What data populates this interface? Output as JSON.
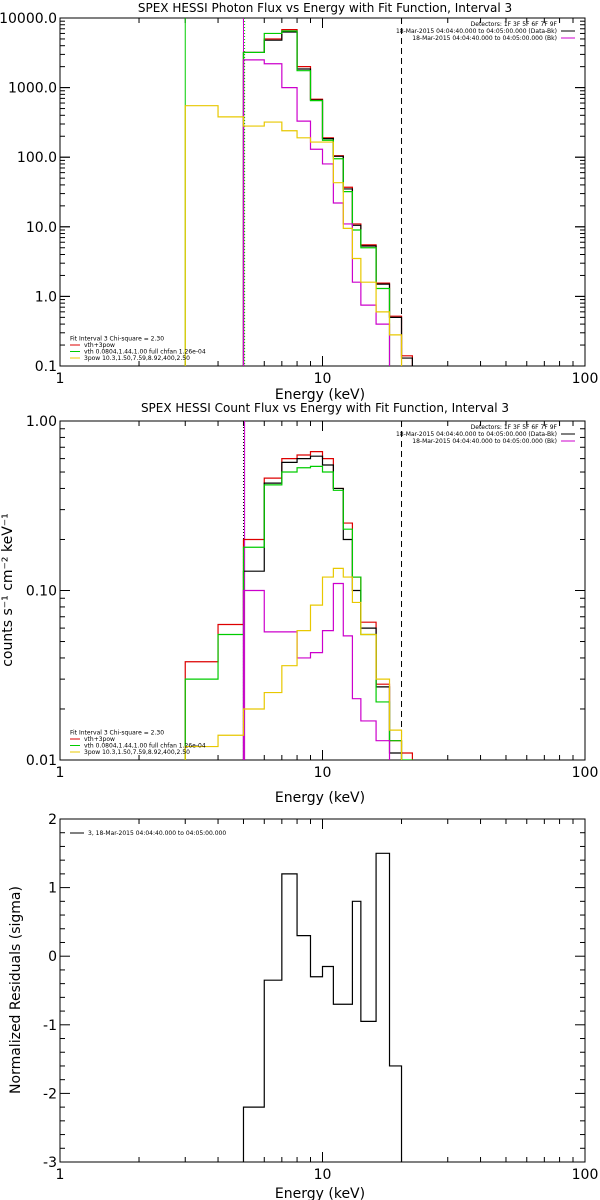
{
  "chart_data": [
    {
      "type": "line",
      "title": "SPEX HESSI Photon Flux vs Energy with Fit Function, Interval 3",
      "xlabel": "Energy (keV)",
      "ylabel": "",
      "x_scale": "log",
      "y_scale": "log",
      "xlim": [
        1,
        100
      ],
      "ylim": [
        0.1,
        10000
      ],
      "x_ticks": [
        "1",
        "10",
        "100"
      ],
      "y_ticks": [
        "0.1",
        "1.0",
        "10.0",
        "100.0",
        "1000.0",
        "10000.0"
      ],
      "legend_top": {
        "placement": "top-right",
        "entries": [
          {
            "text": "Detectors: 1F 3F 5F 6F 7F 9F",
            "color": ""
          },
          {
            "text": "18-Mar-2015 04:04:40.000 to 04:05:00.000 (Data-Bk)",
            "color": "#000000"
          },
          {
            "text": "18-Mar-2015 04:04:40.000 to 04:05:00.000 (Bk)",
            "color": "#cc00cc"
          }
        ]
      },
      "legend_bottom": {
        "placement": "bottom-left",
        "entries": [
          {
            "text": "Fit Interval 3   Chi-square = 2.30",
            "color": ""
          },
          {
            "text": "vth+3pow",
            "color": "#dd0000"
          },
          {
            "text": "vth 0.0804,1.44,1.00  full chfan 1.26e-04",
            "color": "#00cc00"
          },
          {
            "text": "3pow 10.3,1.50,7.59,8.92,400,2.50",
            "color": "#e8c800"
          }
        ]
      },
      "vlines": [
        {
          "x": 3.0,
          "color": "#00cc00",
          "style": "solid"
        },
        {
          "x": 5.0,
          "color": "#cc00cc",
          "style": "solid"
        },
        {
          "x": 5.05,
          "color": "#00cc00",
          "style": "dotted"
        },
        {
          "x": 20.0,
          "color": "#000000",
          "style": "dashed"
        }
      ],
      "series": [
        {
          "name": "vth+3pow",
          "color": "#dd0000",
          "edges": [
            5,
            6,
            7,
            8,
            9,
            10,
            11,
            12,
            13,
            14,
            16,
            18,
            20,
            22
          ],
          "values": [
            3200,
            5000,
            6800,
            2000,
            680,
            190,
            105,
            37,
            11,
            5.5,
            1.55,
            0.52,
            0.14
          ]
        },
        {
          "name": "Data-Bk",
          "color": "#000000",
          "edges": [
            5,
            6,
            7,
            8,
            9,
            10,
            11,
            12,
            13,
            14,
            16,
            18,
            20,
            22
          ],
          "values": [
            3200,
            4800,
            6300,
            1850,
            660,
            185,
            103,
            35,
            10.5,
            5.3,
            1.5,
            0.5,
            0.13
          ]
        },
        {
          "name": "vth",
          "color": "#00cc00",
          "edges": [
            5,
            6,
            7,
            8,
            9,
            10,
            11,
            12,
            13,
            14,
            16,
            18
          ],
          "values": [
            3200,
            6000,
            6500,
            1750,
            650,
            175,
            95,
            32,
            9,
            5,
            1.3
          ]
        },
        {
          "name": "Bk",
          "color": "#cc00cc",
          "edges": [
            5,
            6,
            7,
            8,
            9,
            10,
            11,
            12,
            13,
            14,
            16,
            18
          ],
          "values": [
            2500,
            2200,
            1000,
            330,
            130,
            80,
            22,
            11,
            1.6,
            0.75,
            0.4
          ]
        },
        {
          "name": "3pow",
          "color": "#e8c800",
          "edges": [
            3,
            4,
            5,
            6,
            7,
            8,
            9,
            10,
            11,
            12,
            13,
            14,
            16,
            18,
            20
          ],
          "values": [
            550,
            380,
            280,
            320,
            240,
            190,
            165,
            165,
            43,
            9.5,
            3.5,
            1.6,
            0.6,
            0.28
          ]
        }
      ]
    },
    {
      "type": "line",
      "title": "SPEX HESSI Count Flux vs Energy with Fit Function, Interval 3",
      "xlabel": "Energy (keV)",
      "ylabel": "counts s⁻¹ cm⁻² keV⁻¹",
      "x_scale": "log",
      "y_scale": "log",
      "xlim": [
        1,
        100
      ],
      "ylim": [
        0.01,
        1
      ],
      "x_ticks": [
        "1",
        "10",
        "100"
      ],
      "y_ticks": [
        "0.01",
        "0.10",
        "1.00"
      ],
      "legend_top": {
        "placement": "top-right",
        "entries": [
          {
            "text": "Detectors: 1F 3F 5F 6F 7F 9F",
            "color": ""
          },
          {
            "text": "18-Mar-2015 04:04:40.000 to 04:05:00.000 (Data-Bk)",
            "color": "#000000"
          },
          {
            "text": "18-Mar-2015 04:04:40.000 to 04:05:00.000 (Bk)",
            "color": "#cc00cc"
          }
        ]
      },
      "legend_bottom": {
        "placement": "bottom-left",
        "entries": [
          {
            "text": "Fit Interval 3   Chi-square = 2.30",
            "color": ""
          },
          {
            "text": "vth+3pow",
            "color": "#dd0000"
          },
          {
            "text": "vth 0.0804,1.44,1.00  full chfan 1.26e-04",
            "color": "#00cc00"
          },
          {
            "text": "3pow 10.3,1.50,7.59,8.92,400,2.50",
            "color": "#e8c800"
          }
        ]
      },
      "vlines": [
        {
          "x": 5.0,
          "color": "#000000",
          "style": "dotted"
        },
        {
          "x": 5.05,
          "color": "#cc00cc",
          "style": "solid"
        },
        {
          "x": 20.0,
          "color": "#000000",
          "style": "dashed"
        }
      ],
      "series": [
        {
          "name": "vth+3pow",
          "color": "#dd0000",
          "edges": [
            3,
            4,
            5,
            6,
            7,
            8,
            9,
            10,
            11,
            12,
            13,
            14,
            16,
            18,
            20,
            22
          ],
          "values": [
            0.038,
            0.063,
            0.2,
            0.46,
            0.6,
            0.63,
            0.66,
            0.6,
            0.4,
            0.25,
            0.12,
            0.065,
            0.028,
            0.013,
            0.011
          ]
        },
        {
          "name": "Data-Bk",
          "color": "#000000",
          "edges": [
            5,
            6,
            7,
            8,
            9,
            10,
            11,
            12,
            13,
            14,
            16,
            18,
            20
          ],
          "values": [
            0.13,
            0.43,
            0.57,
            0.6,
            0.62,
            0.55,
            0.4,
            0.2,
            0.1,
            0.06,
            0.027,
            0.011
          ]
        },
        {
          "name": "vth",
          "color": "#00cc00",
          "edges": [
            3,
            4,
            5,
            6,
            7,
            8,
            9,
            10,
            11,
            12,
            13,
            14,
            16,
            18,
            20,
            22
          ],
          "values": [
            0.03,
            0.055,
            0.18,
            0.42,
            0.5,
            0.53,
            0.54,
            0.5,
            0.39,
            0.23,
            0.12,
            0.055,
            0.022,
            0.013,
            0.01
          ]
        },
        {
          "name": "Bk",
          "color": "#cc00cc",
          "edges": [
            5,
            6,
            7,
            8,
            9,
            10,
            11,
            12,
            13,
            14,
            16,
            18
          ],
          "values": [
            0.1,
            0.057,
            0.057,
            0.04,
            0.043,
            0.058,
            0.11,
            0.054,
            0.023,
            0.017,
            0.013
          ]
        },
        {
          "name": "3pow",
          "color": "#e8c800",
          "edges": [
            3,
            4,
            5,
            6,
            7,
            8,
            9,
            10,
            11,
            12,
            13,
            14,
            16,
            18,
            20
          ],
          "values": [
            0.012,
            0.014,
            0.02,
            0.025,
            0.036,
            0.058,
            0.082,
            0.12,
            0.135,
            0.12,
            0.085,
            0.055,
            0.03,
            0.015
          ]
        }
      ]
    },
    {
      "type": "line",
      "title": "",
      "xlabel": "Energy (keV)",
      "ylabel": "Normalized Residuals (sigma)",
      "x_scale": "log",
      "y_scale": "linear",
      "xlim": [
        1,
        100
      ],
      "ylim": [
        -3,
        2
      ],
      "x_ticks": [
        "1",
        "10",
        "100"
      ],
      "y_ticks": [
        "-3",
        "-2",
        "-1",
        "0",
        "1",
        "2"
      ],
      "legend_top": {
        "placement": "top-left",
        "entries": [
          {
            "text": "3, 18-Mar-2015 04:04:40.000 to 04:05:00.000",
            "color": "#000000"
          }
        ]
      },
      "vlines": [],
      "series": [
        {
          "name": "3, 18-Mar-2015 04:04:40.000 to 04:05:00.000",
          "color": "#000000",
          "edges": [
            5,
            6,
            7,
            8,
            9,
            10,
            11,
            12,
            13,
            14,
            16,
            18,
            20
          ],
          "values": [
            -2.2,
            -0.35,
            1.2,
            0.3,
            -0.3,
            -0.15,
            -0.7,
            -0.7,
            0.8,
            -0.95,
            1.5,
            -1.6
          ],
          "drop_to": -3
        }
      ]
    }
  ]
}
